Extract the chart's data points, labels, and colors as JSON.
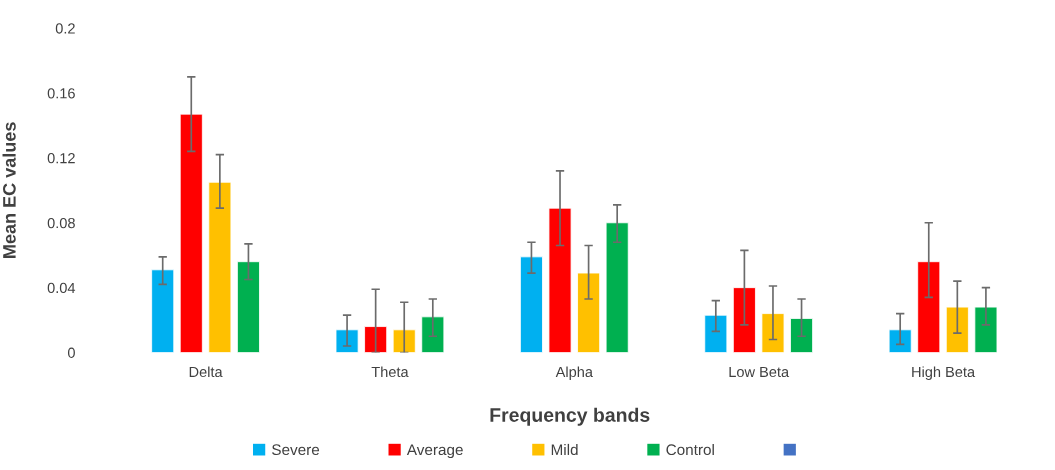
{
  "chart_data": {
    "type": "bar",
    "xlabel": "Frequency bands",
    "ylabel": "Mean EC values",
    "categories": [
      "Delta",
      "Theta",
      "Alpha",
      "Low Beta",
      "High Beta"
    ],
    "ylim": [
      0,
      0.2
    ],
    "yticks": [
      0,
      0.04,
      0.08,
      0.12,
      0.16,
      0.2
    ],
    "grid": false,
    "legend": "bottom",
    "series": [
      {
        "name": "Severe",
        "color": "#00b0f0",
        "values": [
          0.051,
          0.014,
          0.059,
          0.023,
          0.014
        ],
        "errors": [
          [
            0.042,
            0.059
          ],
          [
            0.004,
            0.023
          ],
          [
            0.049,
            0.068
          ],
          [
            0.013,
            0.032
          ],
          [
            0.005,
            0.024
          ]
        ]
      },
      {
        "name": "Average",
        "color": "#ff0000",
        "values": [
          0.147,
          0.016,
          0.089,
          0.04,
          0.056
        ],
        "errors": [
          [
            0.124,
            0.17
          ],
          [
            0.0,
            0.039
          ],
          [
            0.066,
            0.112
          ],
          [
            0.017,
            0.063
          ],
          [
            0.034,
            0.08
          ]
        ]
      },
      {
        "name": "Mild",
        "color": "#ffc000",
        "values": [
          0.105,
          0.014,
          0.049,
          0.024,
          0.028
        ],
        "errors": [
          [
            0.089,
            0.122
          ],
          [
            0.0,
            0.031
          ],
          [
            0.033,
            0.066
          ],
          [
            0.008,
            0.041
          ],
          [
            0.012,
            0.044
          ]
        ]
      },
      {
        "name": "Control",
        "color": "#00b050",
        "values": [
          0.056,
          0.022,
          0.08,
          0.021,
          0.028
        ],
        "errors": [
          [
            0.045,
            0.067
          ],
          [
            0.01,
            0.033
          ],
          [
            0.068,
            0.091
          ],
          [
            0.01,
            0.033
          ],
          [
            0.017,
            0.04
          ]
        ]
      },
      {
        "color": "#4472c4",
        "values": [
          null,
          null,
          null,
          null,
          null
        ]
      }
    ]
  }
}
